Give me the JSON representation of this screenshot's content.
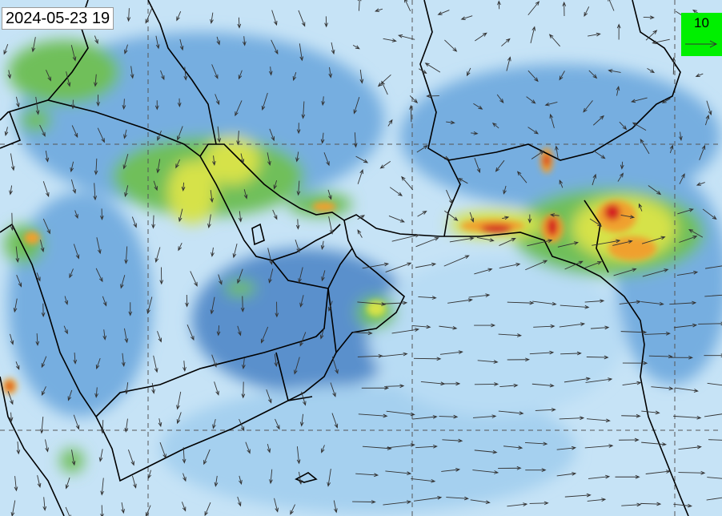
{
  "map": {
    "timestamp": "2024-05-23 19",
    "wind_legend": {
      "value": "10",
      "icon": "arrow-right-icon",
      "background": "#00f000"
    },
    "colors": {
      "low": "#c6e3f6",
      "light": "#a5d0ef",
      "medium": "#76aee0",
      "dark": "#5a90cc",
      "green": "#6fbf5a",
      "yellow": "#d6e24a",
      "orange": "#f0a02e",
      "red": "#d42020"
    }
  }
}
